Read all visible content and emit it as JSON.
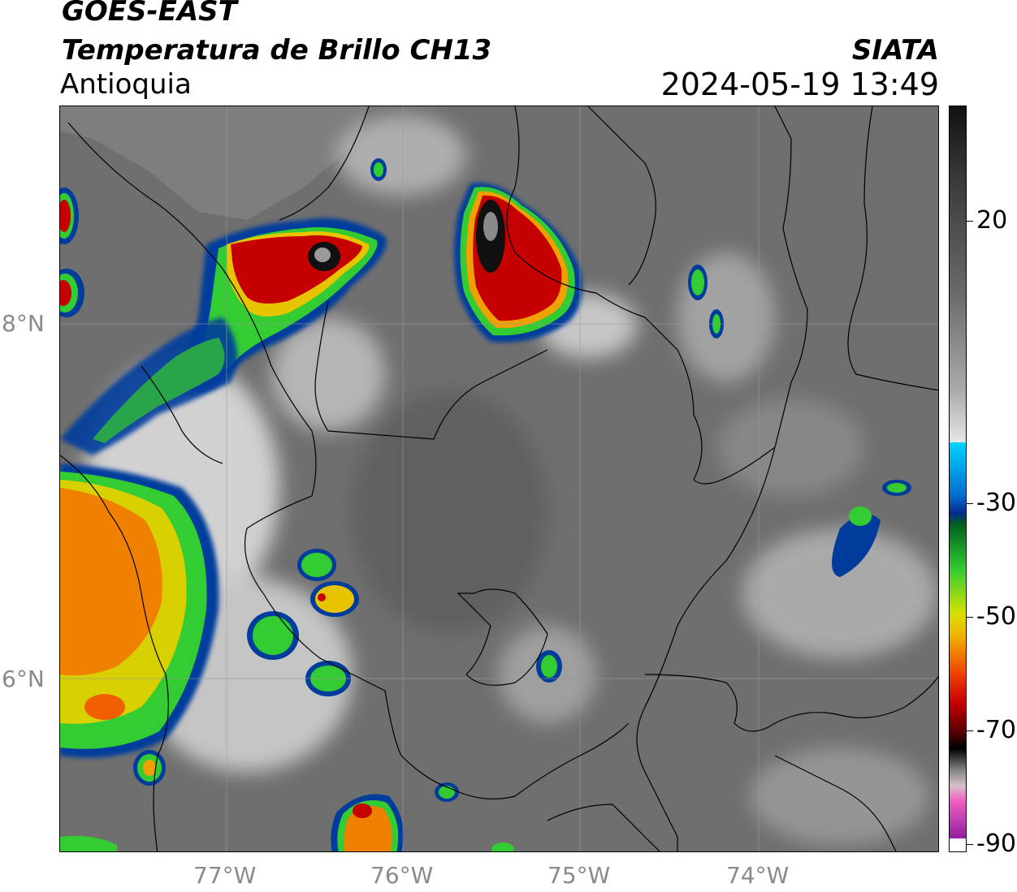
{
  "header": {
    "satellite": "GOES-EAST",
    "product": "Temperatura de Brillo CH13",
    "region": "Antioquia",
    "brand": "SIATA",
    "timestamp": "2024-05-19 13:49"
  },
  "map": {
    "lon_labels": [
      "77°W",
      "76°W",
      "75°W",
      "74°W"
    ],
    "lat_labels": [
      "8°N",
      "6°N"
    ],
    "lon_range": [
      -77.94,
      -72.98
    ],
    "lat_range": [
      5.0,
      9.2
    ]
  },
  "colorbar": {
    "labels": [
      "20",
      "-30",
      "-50",
      "-70",
      "-90"
    ],
    "values": [
      20,
      -30,
      -50,
      -70,
      -90
    ],
    "range": [
      -95,
      35
    ]
  },
  "colors": {
    "background_gray": "#6d6d6d",
    "cold_red": "#c40000",
    "green": "#33cc33",
    "blue": "#003c9c",
    "cyan": "#00d4ff",
    "magenta": "#c040c0"
  }
}
